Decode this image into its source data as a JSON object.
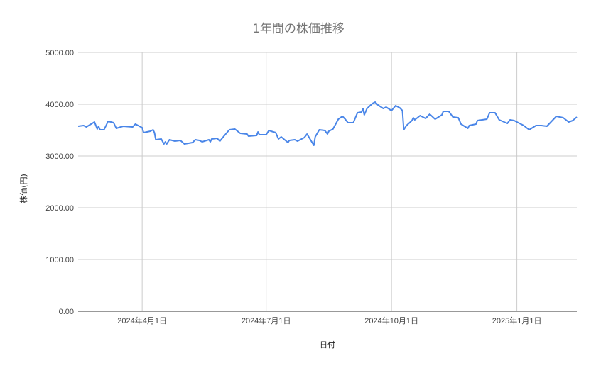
{
  "chart_data": {
    "type": "line",
    "title": "1年間の株価推移",
    "xlabel": "日付",
    "ylabel": "株価(円)",
    "ylim": [
      0,
      5000
    ],
    "xlim": [
      "2024-02-14",
      "2025-02-14"
    ],
    "grid": true,
    "legend": "none",
    "line_color": "#4a86e8",
    "y_ticks": [
      {
        "value": 0,
        "label": "0.00"
      },
      {
        "value": 1000,
        "label": "1000.00"
      },
      {
        "value": 2000,
        "label": "2000.00"
      },
      {
        "value": 3000,
        "label": "3000.00"
      },
      {
        "value": 4000,
        "label": "4000.00"
      },
      {
        "value": 5000,
        "label": "5000.00"
      }
    ],
    "x_ticks": [
      {
        "value": "2024-04-01",
        "label": "2024年4月1日"
      },
      {
        "value": "2024-07-01",
        "label": "2024年7月1日"
      },
      {
        "value": "2024-10-01",
        "label": "2024年10月1日"
      },
      {
        "value": "2025-01-01",
        "label": "2025年1月1日"
      }
    ],
    "series": [
      {
        "points": [
          [
            "2024-02-14",
            3575
          ],
          [
            "2024-02-18",
            3589
          ],
          [
            "2024-02-20",
            3562
          ],
          [
            "2024-02-26",
            3658
          ],
          [
            "2024-02-28",
            3521
          ],
          [
            "2024-02-29",
            3575
          ],
          [
            "2024-03-01",
            3507
          ],
          [
            "2024-03-04",
            3507
          ],
          [
            "2024-03-07",
            3671
          ],
          [
            "2024-03-11",
            3644
          ],
          [
            "2024-03-13",
            3534
          ],
          [
            "2024-03-18",
            3575
          ],
          [
            "2024-03-25",
            3562
          ],
          [
            "2024-03-27",
            3616
          ],
          [
            "2024-03-29",
            3589
          ],
          [
            "2024-04-01",
            3548
          ],
          [
            "2024-04-02",
            3452
          ],
          [
            "2024-04-07",
            3479
          ],
          [
            "2024-04-09",
            3507
          ],
          [
            "2024-04-10",
            3452
          ],
          [
            "2024-04-11",
            3315
          ],
          [
            "2024-04-15",
            3329
          ],
          [
            "2024-04-17",
            3233
          ],
          [
            "2024-04-18",
            3274
          ],
          [
            "2024-04-19",
            3233
          ],
          [
            "2024-04-21",
            3315
          ],
          [
            "2024-04-25",
            3288
          ],
          [
            "2024-04-29",
            3301
          ],
          [
            "2024-05-02",
            3233
          ],
          [
            "2024-05-08",
            3260
          ],
          [
            "2024-05-10",
            3315
          ],
          [
            "2024-05-13",
            3301
          ],
          [
            "2024-05-15",
            3274
          ],
          [
            "2024-05-20",
            3315
          ],
          [
            "2024-05-21",
            3274
          ],
          [
            "2024-05-22",
            3329
          ],
          [
            "2024-05-26",
            3343
          ],
          [
            "2024-05-28",
            3288
          ],
          [
            "2024-05-31",
            3384
          ],
          [
            "2024-06-04",
            3507
          ],
          [
            "2024-06-08",
            3521
          ],
          [
            "2024-06-12",
            3438
          ],
          [
            "2024-06-17",
            3425
          ],
          [
            "2024-06-18",
            3384
          ],
          [
            "2024-06-24",
            3397
          ],
          [
            "2024-06-25",
            3466
          ],
          [
            "2024-06-26",
            3411
          ],
          [
            "2024-07-01",
            3411
          ],
          [
            "2024-07-03",
            3493
          ],
          [
            "2024-07-08",
            3452
          ],
          [
            "2024-07-10",
            3329
          ],
          [
            "2024-07-12",
            3370
          ],
          [
            "2024-07-17",
            3260
          ],
          [
            "2024-07-18",
            3301
          ],
          [
            "2024-07-22",
            3315
          ],
          [
            "2024-07-24",
            3288
          ],
          [
            "2024-07-29",
            3356
          ],
          [
            "2024-07-31",
            3425
          ],
          [
            "2024-08-05",
            3206
          ],
          [
            "2024-08-06",
            3370
          ],
          [
            "2024-08-09",
            3507
          ],
          [
            "2024-08-13",
            3493
          ],
          [
            "2024-08-15",
            3425
          ],
          [
            "2024-08-16",
            3479
          ],
          [
            "2024-08-19",
            3521
          ],
          [
            "2024-08-23",
            3712
          ],
          [
            "2024-08-26",
            3767
          ],
          [
            "2024-08-28",
            3712
          ],
          [
            "2024-08-30",
            3644
          ],
          [
            "2024-09-03",
            3644
          ],
          [
            "2024-09-06",
            3836
          ],
          [
            "2024-09-09",
            3849
          ],
          [
            "2024-09-10",
            3918
          ],
          [
            "2024-09-11",
            3795
          ],
          [
            "2024-09-13",
            3918
          ],
          [
            "2024-09-17",
            4014
          ],
          [
            "2024-09-19",
            4041
          ],
          [
            "2024-09-21",
            3986
          ],
          [
            "2024-09-25",
            3918
          ],
          [
            "2024-09-27",
            3945
          ],
          [
            "2024-10-01",
            3877
          ],
          [
            "2024-10-04",
            3973
          ],
          [
            "2024-10-07",
            3932
          ],
          [
            "2024-10-09",
            3877
          ],
          [
            "2024-10-10",
            3507
          ],
          [
            "2024-10-12",
            3589
          ],
          [
            "2024-10-16",
            3685
          ],
          [
            "2024-10-17",
            3740
          ],
          [
            "2024-10-18",
            3699
          ],
          [
            "2024-10-22",
            3781
          ],
          [
            "2024-10-26",
            3726
          ],
          [
            "2024-10-29",
            3808
          ],
          [
            "2024-11-02",
            3712
          ],
          [
            "2024-11-07",
            3795
          ],
          [
            "2024-11-08",
            3863
          ],
          [
            "2024-11-12",
            3863
          ],
          [
            "2024-11-15",
            3753
          ],
          [
            "2024-11-19",
            3740
          ],
          [
            "2024-11-21",
            3616
          ],
          [
            "2024-11-26",
            3534
          ],
          [
            "2024-11-27",
            3589
          ],
          [
            "2024-12-02",
            3616
          ],
          [
            "2024-12-03",
            3685
          ],
          [
            "2024-12-10",
            3712
          ],
          [
            "2024-12-12",
            3836
          ],
          [
            "2024-12-16",
            3836
          ],
          [
            "2024-12-19",
            3699
          ],
          [
            "2024-12-25",
            3630
          ],
          [
            "2024-12-27",
            3699
          ],
          [
            "2024-12-30",
            3685
          ],
          [
            "2025-01-06",
            3589
          ],
          [
            "2025-01-10",
            3507
          ],
          [
            "2025-01-15",
            3589
          ],
          [
            "2025-01-19",
            3589
          ],
          [
            "2025-01-23",
            3575
          ],
          [
            "2025-01-30",
            3767
          ],
          [
            "2025-02-04",
            3740
          ],
          [
            "2025-02-08",
            3658
          ],
          [
            "2025-02-11",
            3685
          ],
          [
            "2025-02-14",
            3753
          ]
        ]
      }
    ]
  }
}
